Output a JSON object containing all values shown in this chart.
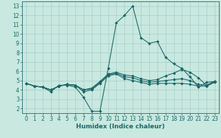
{
  "xlabel": "Humidex (Indice chaleur)",
  "xlim": [
    -0.5,
    23.5
  ],
  "ylim": [
    1.5,
    13.5
  ],
  "xticks": [
    0,
    1,
    2,
    3,
    4,
    5,
    6,
    7,
    8,
    9,
    10,
    11,
    12,
    13,
    14,
    15,
    16,
    17,
    18,
    19,
    20,
    21,
    22,
    23
  ],
  "yticks": [
    2,
    3,
    4,
    5,
    6,
    7,
    8,
    9,
    10,
    11,
    12,
    13
  ],
  "bg_color": "#c8e8e0",
  "line_color": "#1a6666",
  "grid_color": "#a8ccc8",
  "lines": [
    [
      4.7,
      4.4,
      4.3,
      3.8,
      4.5,
      4.5,
      4.3,
      3.2,
      1.7,
      1.7,
      6.3,
      11.2,
      12.0,
      13.0,
      9.6,
      9.0,
      9.2,
      7.5,
      6.8,
      6.3,
      5.4,
      4.3,
      4.8,
      4.9
    ],
    [
      4.7,
      4.4,
      4.3,
      4.0,
      4.4,
      4.6,
      4.5,
      3.8,
      4.0,
      4.7,
      5.5,
      5.7,
      5.2,
      5.0,
      4.8,
      4.6,
      4.7,
      4.7,
      4.7,
      4.7,
      4.6,
      4.4,
      4.4,
      4.8
    ],
    [
      4.7,
      4.4,
      4.3,
      4.0,
      4.4,
      4.6,
      4.5,
      4.0,
      4.1,
      4.8,
      5.6,
      5.8,
      5.4,
      5.3,
      5.0,
      4.8,
      4.9,
      5.0,
      5.1,
      5.2,
      5.0,
      4.6,
      4.5,
      4.9
    ],
    [
      4.7,
      4.4,
      4.3,
      4.0,
      4.4,
      4.6,
      4.5,
      4.0,
      4.2,
      4.9,
      5.7,
      5.9,
      5.6,
      5.5,
      5.2,
      5.0,
      5.1,
      5.5,
      5.8,
      6.2,
      5.9,
      5.3,
      4.5,
      4.9
    ]
  ],
  "marker": "D",
  "markersize": 2.0,
  "linewidth": 0.8,
  "xlabel_fontsize": 6.5,
  "tick_fontsize": 5.5
}
